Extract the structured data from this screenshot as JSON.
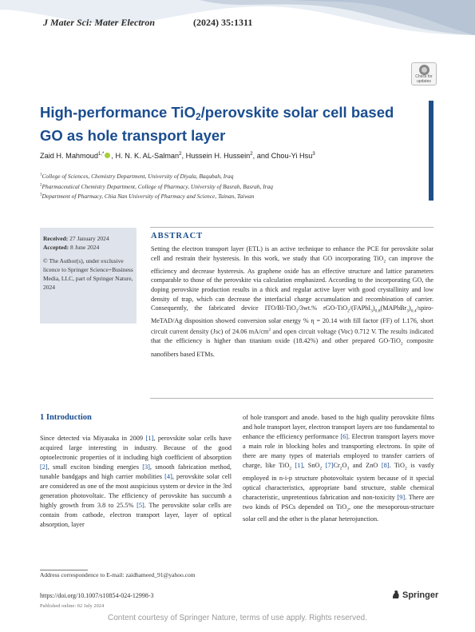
{
  "header": {
    "journal": "J Mater Sci: Mater Electron",
    "issue": "(2024) 35:1311",
    "badge_line1": "Check for",
    "badge_line2": "updates"
  },
  "title_part1": "High-performance TiO",
  "title_sub": "2",
  "title_part2": "/perovskite solar cell based GO as hole transport layer",
  "authors": {
    "a1": "Zaid H. Mahmoud",
    "a1_sup": "1,*",
    "a2": ", H. N. K. AL-Salman",
    "a2_sup": "2",
    "a3": ", Hussein H. Hussein",
    "a3_sup": "2",
    "a4": ", and Chou-Yi Hsu",
    "a4_sup": "3"
  },
  "affiliations": [
    {
      "num": "1",
      "text": "College of Sciences, Chemistry Department, University of Diyala, Baqubah, Iraq"
    },
    {
      "num": "2",
      "text": "Pharmaceutical Chemistry Department, College of Pharmacy, University of Basrah, Basrah, Iraq"
    },
    {
      "num": "3",
      "text": "Department of Pharmacy, Chia Nan University of Pharmacy and Science, Tainan, Taiwan"
    }
  ],
  "dates": {
    "received_label": "Received:",
    "received": " 27 January 2024",
    "accepted_label": "Accepted:",
    "accepted": " 8 June 2024",
    "license": "© The Author(s), under exclusive licence to Springer Science+Business Media, LLC, part of Springer Nature, 2024"
  },
  "abstract": {
    "heading": "ABSTRACT",
    "t1": "Setting the electron transport layer (ETL) is an active technique to enhance the PCE for perovskite solar cell and restrain their hysteresis. In this work, we study that GO incorporating TiO",
    "t1_sub": "2",
    "t2": " can improve the efficiency and decrease hysteresis. As graphene oxide has an effective structure and lattice parameters comparable to those of the perovskite via calculation emphasized. According to the incorporating GO, the doping perovskite production results in a thick and regular active layer with good crystallinity and low density of trap, which can decrease the interfacial charge accumulation and recombination of carrier. Consequently, the fabricated device ITO/Bl-TiO",
    "t2_sub": "2",
    "t3": "/3wt.% rGO-TiO",
    "t3_sub": "2",
    "t4": "/(FAPbI",
    "t4_sub1": "3",
    "t4_paren": ")",
    "t4_sub2": "0.8",
    "t5": "(MAPbBr",
    "t5_sub1": "3",
    "t5_paren": ")",
    "t5_sub2": "0.4",
    "t6": "/spiro-MeTAD/Ag disposition showed conversion solar energy % η = 20.14 with fill factor (FF) of 1.176, short circuit current density (Jsc) of 24.06 mA/cm",
    "t6_sup": "2",
    "t7": " and open circuit voltage (Voc) 0.712 V. The results indicated that the efficiency is higher than titanium oxide (18.42%) and other prepared GO-TiO",
    "t7_sub": "2",
    "t8": " composite nanofibers based ETMs."
  },
  "intro": {
    "heading": "1  Introduction",
    "l1": "Since detected via Miyasaka in 2009 ",
    "c1": "[1]",
    "l2": ", perovskite solar cells have acquired large interesting in industry. Because of the good optoelectronic properties of it including high coefficient of absorption ",
    "c2": "[2]",
    "l3": ", small exciton binding energies ",
    "c3": "[3]",
    "l4": ", smooth fabrication method, tunable bandgaps and high carrier mobilities ",
    "c4": "[4]",
    "l5": ", perovskite solar cell are considered as one of the most auspicious system or device in the 3rd generation photovoltaic. The efficiency of perovskite has succumb a highly growth from 3.8 to 25.5% ",
    "c5": "[5]",
    "l6": ". The perovskite solar cells are contain from cathode, electron transport layer, layer of optical absorption, layer",
    "r1": "of hole transport and anode. based to the high quality perovskite films and hole transport layer, electron transport layers are too fundamental to enhance the efficiency performance ",
    "rc1": "[6]",
    "r2": ". Electron transport layers move a main role in blocking holes and transporting electrons. In spite of there are many types of materials employed to transfer carriers of charge, like TiO",
    "r2_sub": "2",
    "r3": " ",
    "rc2": "[1]",
    "r4": ", SnO",
    "r4_sub": "2",
    "r5": " ",
    "rc3": "[7]",
    "r6": "Cr",
    "r6_sub1": "2",
    "r7": "O",
    "r7_sub": "3",
    "r8": " and ZnO ",
    "rc4": "[8]",
    "r9": ". TiO",
    "r9_sub": "2",
    "r10": " is vastly employed in n-i-p structure photovoltaic system because of it special optical characteristics, appropriate band structure, stable chemical characteristic, unpretentious fabrication and non-toxicity ",
    "rc5": "[9]",
    "r11": ". There are two kinds of PSCs depended on TiO",
    "r11_sub": "2",
    "r12": ", one the mesoporous-structure solar cell and the other is the planar heterojunction."
  },
  "footer": {
    "correspondence": "Address correspondence to E-mail: zaidhameed_91@yahoo.com",
    "doi": "https://doi.org/10.1007/s10854-024-12998-3",
    "published": "Published online: 02 July 2024",
    "springer": "Springer",
    "courtesy": "Content courtesy of Springer Nature, terms of use apply. Rights reserved."
  },
  "colors": {
    "accent": "#1a4d8f",
    "header_wave": "#c9d3e0",
    "sidebar_box": "#dfe4ec"
  }
}
